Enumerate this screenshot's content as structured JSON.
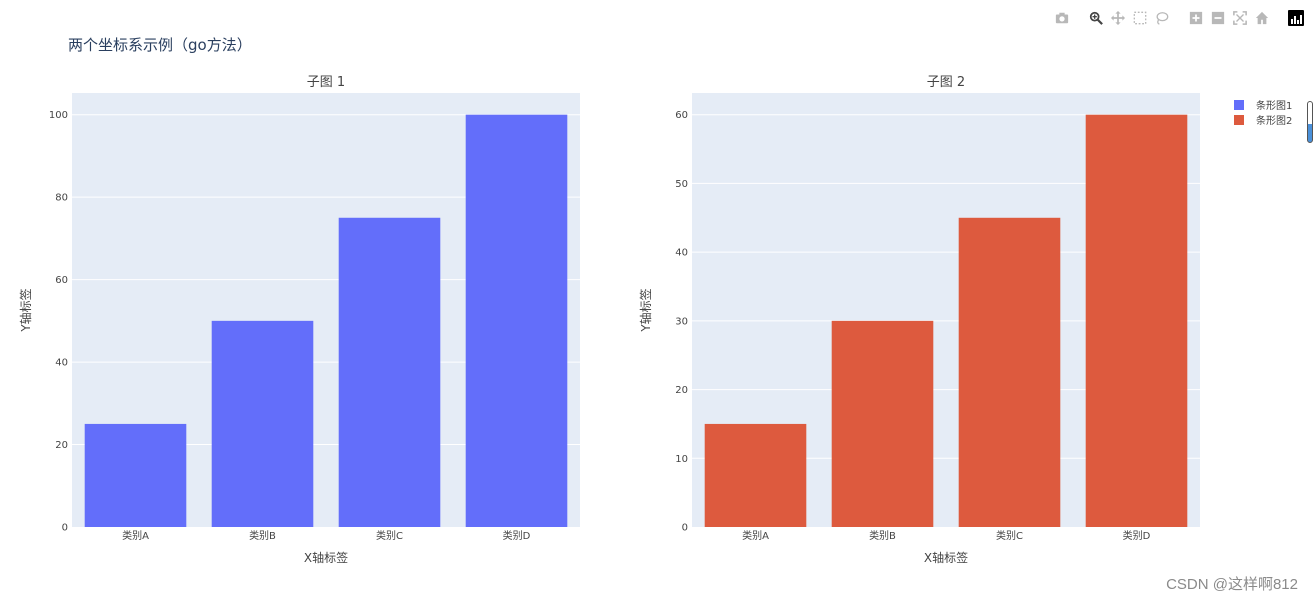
{
  "page": {
    "title": "两个坐标系示例（go方法）",
    "watermark": "CSDN @这样啊812"
  },
  "modebar": {
    "icons": [
      "camera-icon",
      "zoom-icon",
      "pan-icon",
      "box-select-icon",
      "lasso-icon",
      "zoom-in-icon",
      "zoom-out-icon",
      "autoscale-icon",
      "home-icon",
      "plotly-logo-icon"
    ]
  },
  "chart_data": [
    {
      "type": "bar",
      "title": "子图 1",
      "categories": [
        "类别A",
        "类别B",
        "类别C",
        "类别D"
      ],
      "series": [
        {
          "name": "条形图1",
          "values": [
            25,
            50,
            75,
            100
          ],
          "color": "#636efa"
        }
      ],
      "xlabel": "X轴标签",
      "ylabel": "Y轴标签",
      "ylim": [
        0,
        105.26
      ],
      "yticks": [
        0,
        20,
        40,
        60,
        80,
        100
      ],
      "grid": true,
      "legend": "right"
    },
    {
      "type": "bar",
      "title": "子图 2",
      "categories": [
        "类别A",
        "类别B",
        "类别C",
        "类别D"
      ],
      "series": [
        {
          "name": "条形图2",
          "values": [
            15,
            30,
            45,
            60
          ],
          "color": "#dd5a3e"
        }
      ],
      "xlabel": "X轴标签",
      "ylabel": "Y轴标签",
      "ylim": [
        0,
        63.16
      ],
      "yticks": [
        0,
        10,
        20,
        30,
        40,
        50,
        60
      ],
      "grid": true,
      "legend": "right"
    }
  ],
  "legend": {
    "items": [
      {
        "label": "条形图1",
        "color": "#636efa"
      },
      {
        "label": "条形图2",
        "color": "#dd5a3e"
      }
    ]
  },
  "colors": {
    "plot_bg": "#e5ecf6",
    "grid": "#ffffff"
  }
}
